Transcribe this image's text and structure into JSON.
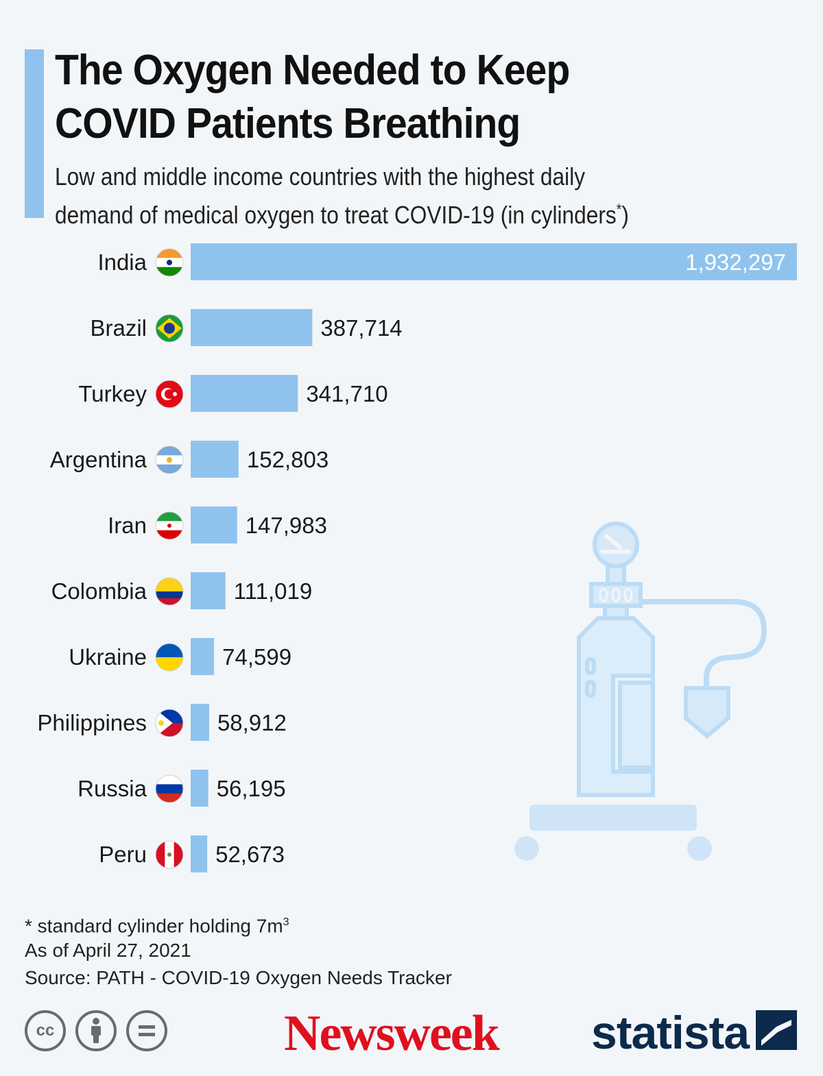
{
  "header": {
    "title_line1": "The Oxygen Needed to Keep",
    "title_line2": "COVID Patients Breathing",
    "subtitle_line1": "Low and middle income countries with the highest daily",
    "subtitle_line2": "demand of medical oxygen to treat COVID-19 (in cylinders",
    "subtitle_sup": "*",
    "subtitle_end": ")"
  },
  "colors": {
    "bar": "#8fc3ee",
    "accent": "#8fc3ee",
    "newsweek_red": "#e0101e",
    "statista_navy": "#0c2a4b"
  },
  "chart_data": {
    "type": "bar",
    "orientation": "horizontal",
    "categories": [
      "India",
      "Brazil",
      "Turkey",
      "Argentina",
      "Iran",
      "Colombia",
      "Ukraine",
      "Philippines",
      "Russia",
      "Peru"
    ],
    "values": [
      1932297,
      387714,
      341710,
      152803,
      147983,
      111019,
      74599,
      58912,
      56195,
      52673
    ],
    "value_labels": [
      "1,932,297",
      "387,714",
      "341,710",
      "152,803",
      "147,983",
      "111,019",
      "74,599",
      "58,912",
      "56,195",
      "52,673"
    ],
    "flag_icons": [
      "india-flag-icon",
      "brazil-flag-icon",
      "turkey-flag-icon",
      "argentina-flag-icon",
      "iran-flag-icon",
      "colombia-flag-icon",
      "ukraine-flag-icon",
      "philippines-flag-icon",
      "russia-flag-icon",
      "peru-flag-icon"
    ],
    "xlim": [
      0,
      1932297
    ],
    "grid": false,
    "legend": "none"
  },
  "footer": {
    "note_text": "* standard cylinder holding 7m",
    "note_sup": "3",
    "date": "As of April 27, 2021",
    "source": "Source: PATH - COVID-19 Oxygen Needs Tracker",
    "cc_icons": [
      "cc-icon",
      "attribution-icon",
      "no-derivatives-icon"
    ],
    "cc_label": "cc",
    "newsweek": "Newsweek",
    "statista": "statista"
  }
}
